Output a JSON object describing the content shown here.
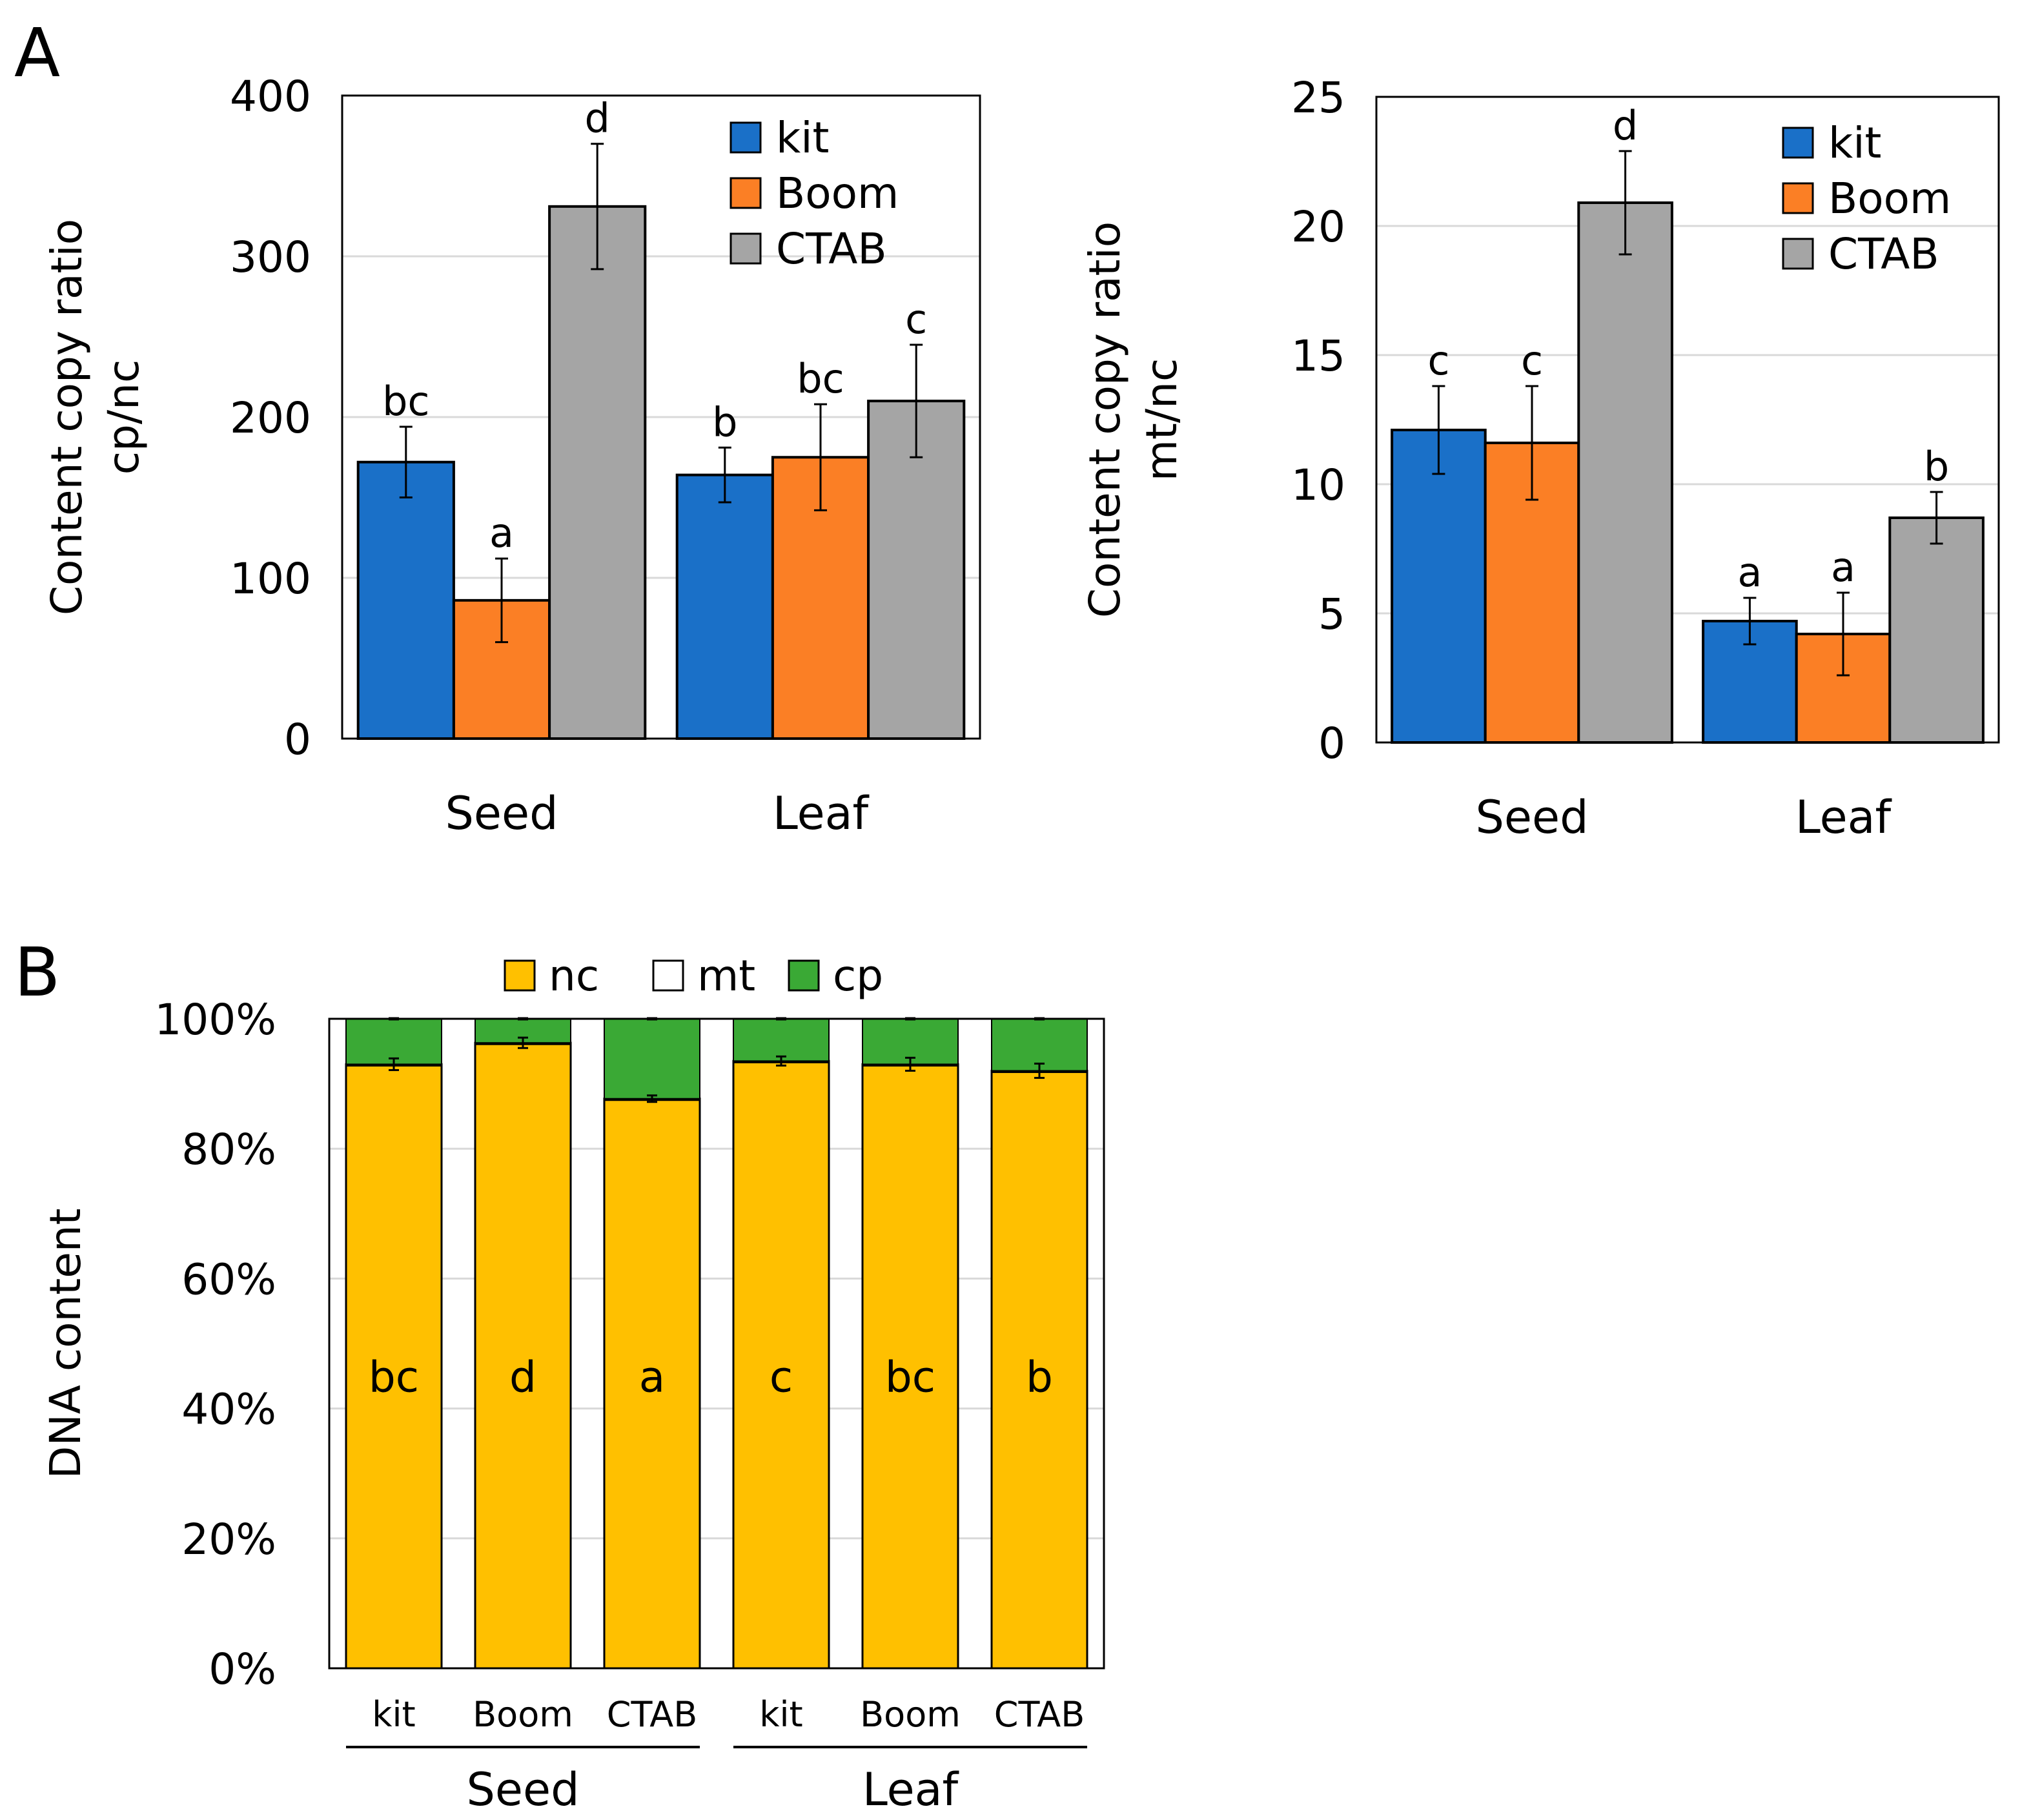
{
  "panels": [
    {
      "id": "A",
      "label": "A"
    },
    {
      "id": "B",
      "label": "B"
    }
  ],
  "colors": {
    "kit": "#1a70c8",
    "Boom": "#fb7f25",
    "CTAB": "#a5a5a5",
    "nc": "#ffc000",
    "mt": "#ffffff",
    "cp": "#3aa935"
  },
  "chart_data": [
    {
      "type": "bar",
      "panel": "A",
      "title": "",
      "ylabel_lines": [
        "Content copy ratio",
        "cp/nc"
      ],
      "xlabel": "",
      "ylim": [
        0,
        400
      ],
      "yticks": [
        0,
        100,
        200,
        300,
        400
      ],
      "ytick_labels": [
        "0",
        "100",
        "200",
        "300",
        "400"
      ],
      "grid": true,
      "legend_position": "top-right",
      "categories": [
        "Seed",
        "Leaf"
      ],
      "series": [
        {
          "name": "kit",
          "values": [
            172,
            164
          ],
          "errors": [
            22,
            17
          ],
          "letters": [
            "bc",
            "b"
          ]
        },
        {
          "name": "Boom",
          "values": [
            86,
            175
          ],
          "errors": [
            26,
            33
          ],
          "letters": [
            "a",
            "bc"
          ]
        },
        {
          "name": "CTAB",
          "values": [
            331,
            210
          ],
          "errors": [
            39,
            35
          ],
          "letters": [
            "d",
            "c"
          ]
        }
      ]
    },
    {
      "type": "bar",
      "panel": "A",
      "title": "",
      "ylabel_lines": [
        "Content copy ratio",
        "mt/nc"
      ],
      "xlabel": "",
      "ylim": [
        0,
        25
      ],
      "yticks": [
        0,
        5,
        10,
        15,
        20,
        25
      ],
      "ytick_labels": [
        "0",
        "5",
        "10",
        "15",
        "20",
        "25"
      ],
      "grid": true,
      "legend_position": "top-right",
      "categories": [
        "Seed",
        "Leaf"
      ],
      "series": [
        {
          "name": "kit",
          "values": [
            12.1,
            4.7
          ],
          "errors": [
            1.7,
            0.9
          ],
          "letters": [
            "c",
            "a"
          ]
        },
        {
          "name": "Boom",
          "values": [
            11.6,
            4.2
          ],
          "errors": [
            2.2,
            1.6
          ],
          "letters": [
            "c",
            "a"
          ]
        },
        {
          "name": "CTAB",
          "values": [
            20.9,
            8.7
          ],
          "errors": [
            2.0,
            1.0
          ],
          "letters": [
            "d",
            "b"
          ]
        }
      ]
    },
    {
      "type": "bar",
      "stacked": true,
      "panel": "B",
      "title": "",
      "ylabel": "DNA content",
      "xlabel": "",
      "ylim": [
        0,
        100
      ],
      "yticks": [
        0,
        20,
        40,
        60,
        80,
        100
      ],
      "ytick_labels": [
        "0%",
        "20%",
        "40%",
        "60%",
        "80%",
        "100%"
      ],
      "legend_position": "top",
      "categories": [
        "kit",
        "Boom",
        "CTAB",
        "kit",
        "Boom",
        "CTAB"
      ],
      "groups": [
        {
          "name": "Seed",
          "span": [
            0,
            2
          ]
        },
        {
          "name": "Leaf",
          "span": [
            3,
            5
          ]
        }
      ],
      "series": [
        {
          "name": "nc",
          "values": [
            93.0,
            96.3,
            87.7,
            93.5,
            93.0,
            92.0
          ],
          "errors": [
            0.9,
            0.8,
            0.5,
            0.7,
            1.0,
            1.1
          ]
        },
        {
          "name": "mt",
          "values": [
            0.0,
            0.0,
            0.0,
            0.0,
            0.0,
            0.0
          ],
          "errors": [
            0.1,
            0.1,
            0.1,
            0.1,
            0.1,
            0.1
          ]
        },
        {
          "name": "cp",
          "values": [
            7.0,
            3.7,
            12.3,
            6.5,
            7.0,
            8.0
          ]
        }
      ],
      "letters": [
        "bc",
        "d",
        "a",
        "c",
        "bc",
        "b"
      ]
    }
  ]
}
